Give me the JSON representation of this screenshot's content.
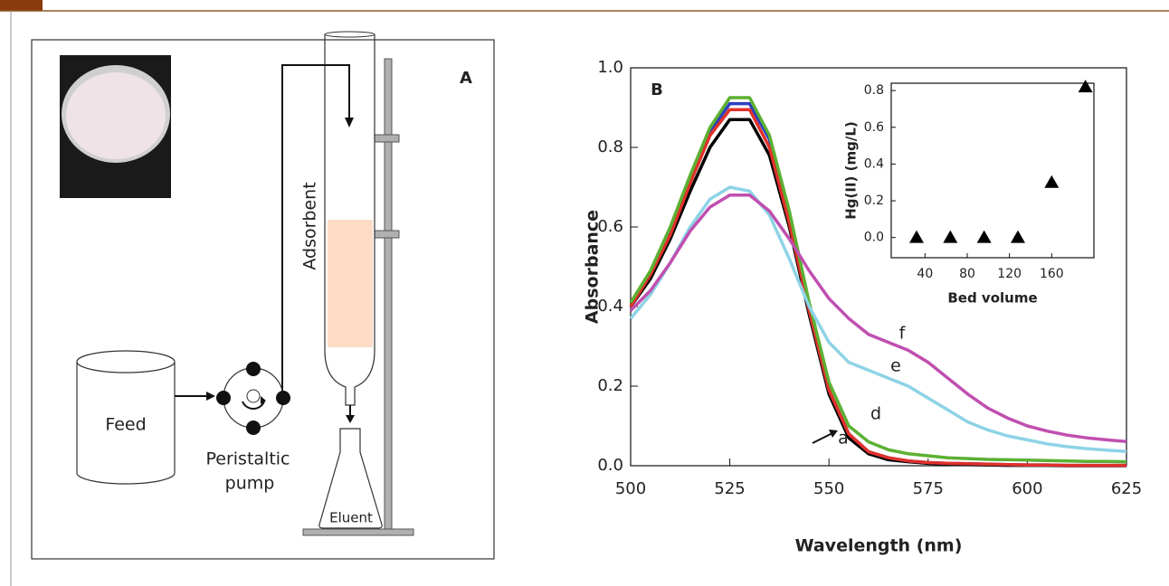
{
  "diagram": {
    "panel_label": "A",
    "column_label": "Adsorbent",
    "feed_label": "Feed",
    "pump_label": [
      "Peristaltic",
      "pump"
    ],
    "flask_label": "Eluent"
  },
  "chart_data": [
    {
      "type": "line",
      "panel_label": "B",
      "xlabel": "Wavelength (nm)",
      "ylabel": "Absorbance",
      "x": [
        500,
        505,
        510,
        515,
        520,
        525,
        530,
        535,
        540,
        545,
        550,
        555,
        560,
        565,
        570,
        575,
        580,
        585,
        590,
        595,
        600,
        605,
        610,
        615,
        620,
        625
      ],
      "xlim": [
        500,
        625
      ],
      "xticks": [
        500,
        525,
        550,
        575,
        600,
        625
      ],
      "ylim": [
        0,
        1.0
      ],
      "yticks": [
        {
          "value": 0,
          "label": "0.0"
        },
        0.2,
        0.4,
        0.6,
        0.8,
        {
          "value": 1.0,
          "label": "1.0"
        }
      ],
      "series": [
        {
          "name": "a",
          "color": "#000000",
          "values": [
            0.4,
            0.47,
            0.57,
            0.69,
            0.8,
            0.87,
            0.87,
            0.78,
            0.6,
            0.38,
            0.18,
            0.07,
            0.03,
            0.015,
            0.01,
            0.006,
            0.004,
            0.003,
            0.002,
            0.001,
            0.001,
            0.001,
            0,
            0,
            0,
            0
          ]
        },
        {
          "color": "#2b3fbf",
          "values": [
            0.41,
            0.48,
            0.59,
            0.72,
            0.84,
            0.91,
            0.91,
            0.82,
            0.62,
            0.39,
            0.19,
            0.08,
            0.035,
            0.02,
            0.012,
            0.008,
            0.006,
            0.005,
            0.004,
            0.003,
            0.002,
            0.002,
            0.001,
            0.001,
            0.001,
            0.001
          ]
        },
        {
          "color": "#e0312a",
          "values": [
            0.4,
            0.48,
            0.58,
            0.71,
            0.83,
            0.895,
            0.895,
            0.8,
            0.61,
            0.39,
            0.19,
            0.08,
            0.035,
            0.02,
            0.012,
            0.008,
            0.006,
            0.005,
            0.004,
            0.003,
            0.002,
            0.002,
            0.001,
            0.001,
            0.001,
            0.001
          ]
        },
        {
          "name": "d",
          "color": "#5cb032",
          "values": [
            0.41,
            0.49,
            0.6,
            0.73,
            0.85,
            0.925,
            0.925,
            0.83,
            0.64,
            0.41,
            0.21,
            0.1,
            0.06,
            0.04,
            0.03,
            0.025,
            0.02,
            0.018,
            0.016,
            0.015,
            0.014,
            0.013,
            0.012,
            0.011,
            0.011,
            0.01
          ]
        },
        {
          "name": "e",
          "color": "#8ed3e6",
          "values": [
            0.37,
            0.43,
            0.51,
            0.6,
            0.67,
            0.7,
            0.69,
            0.63,
            0.52,
            0.4,
            0.31,
            0.26,
            0.24,
            0.22,
            0.2,
            0.17,
            0.14,
            0.11,
            0.09,
            0.075,
            0.065,
            0.055,
            0.048,
            0.043,
            0.039,
            0.036
          ]
        },
        {
          "name": "f",
          "color": "#c04fb0",
          "values": [
            0.39,
            0.44,
            0.51,
            0.59,
            0.65,
            0.68,
            0.68,
            0.64,
            0.57,
            0.49,
            0.42,
            0.37,
            0.33,
            0.31,
            0.29,
            0.26,
            0.22,
            0.18,
            0.145,
            0.12,
            0.1,
            0.087,
            0.077,
            0.07,
            0.065,
            0.061
          ]
        }
      ]
    },
    {
      "type": "scatter",
      "xlabel": "Bed volume",
      "ylabel": "Hg(II) (mg/L)",
      "x": [
        32,
        64,
        96,
        128,
        160,
        192
      ],
      "values": [
        0,
        0,
        0,
        0,
        0.3,
        0.82
      ],
      "color": "#000000",
      "xlim": [
        8,
        200
      ],
      "xticks": [
        40,
        80,
        120,
        160
      ],
      "ylim": [
        -0.11,
        0.84
      ],
      "yticks": [
        {
          "value": 0,
          "label": "0.0"
        },
        0.2,
        0.4,
        0.6,
        0.8
      ]
    }
  ]
}
